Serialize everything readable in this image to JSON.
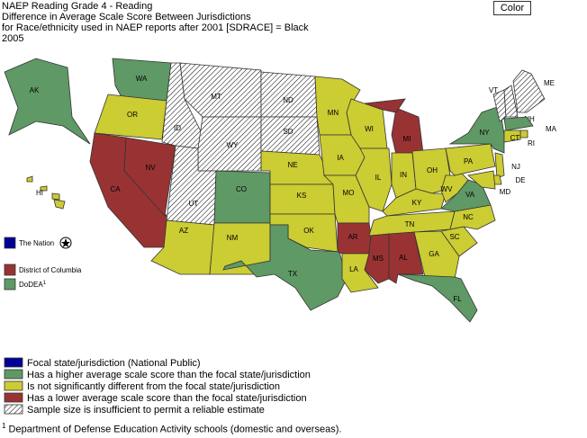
{
  "header": {
    "lines": [
      "NAEP Reading Grade 4 - Reading",
      "Difference in Average Scale Score Between Jurisdictions",
      "for Race/ethnicity used in NAEP reports after 2001 [SDRACE] = Black",
      "2005"
    ]
  },
  "button": "Color",
  "legend": [
    {
      "label": "Focal state/jurisdiction (National Public)",
      "color": "#000099"
    },
    {
      "label": "Has a higher average scale score than the focal state/jurisdiction",
      "color": "#5f9966"
    },
    {
      "label": "Is not significantly different from the focal state/jurisdiction",
      "color": "#cccc33"
    },
    {
      "label": "Has a lower average scale score than the focal state/jurisdiction",
      "color": "#993333"
    },
    {
      "label": "Sample size is insufficient to permit a reliable estimate",
      "color": null,
      "hatched": true
    }
  ],
  "side": [
    {
      "label": "The Nation",
      "status": 0
    },
    {
      "label": "District of Columbia",
      "status": 3
    },
    {
      "label": "DoDEA",
      "note": "1",
      "status": 1
    }
  ],
  "states": [
    {
      "label": "AK",
      "status": 1
    },
    {
      "label": "HI",
      "status": 2
    },
    {
      "label": "WA",
      "status": 1
    },
    {
      "label": "OR",
      "status": 2
    },
    {
      "label": "CA",
      "status": 3
    },
    {
      "label": "NV",
      "status": 3
    },
    {
      "label": "ID",
      "status": 4
    },
    {
      "label": "MT",
      "status": 4
    },
    {
      "label": "WY",
      "status": 4
    },
    {
      "label": "UT",
      "status": 4
    },
    {
      "label": "CO",
      "status": 1
    },
    {
      "label": "AZ",
      "status": 2
    },
    {
      "label": "NM",
      "status": 2
    },
    {
      "label": "ND",
      "status": 4
    },
    {
      "label": "SD",
      "status": 4
    },
    {
      "label": "NE",
      "status": 2
    },
    {
      "label": "KS",
      "status": 2
    },
    {
      "label": "OK",
      "status": 2
    },
    {
      "label": "TX",
      "status": 1
    },
    {
      "label": "MN",
      "status": 2
    },
    {
      "label": "IA",
      "status": 2
    },
    {
      "label": "MO",
      "status": 2
    },
    {
      "label": "AR",
      "status": 3
    },
    {
      "label": "LA",
      "status": 2
    },
    {
      "label": "WI",
      "status": 2
    },
    {
      "label": "IL",
      "status": 2
    },
    {
      "label": "MI",
      "status": 3
    },
    {
      "label": "IN",
      "status": 2
    },
    {
      "label": "OH",
      "status": 2
    },
    {
      "label": "KY",
      "status": 2
    },
    {
      "label": "TN",
      "status": 2
    },
    {
      "label": "MS",
      "status": 3
    },
    {
      "label": "AL",
      "status": 3
    },
    {
      "label": "GA",
      "status": 2
    },
    {
      "label": "FL",
      "status": 1
    },
    {
      "label": "SC",
      "status": 2
    },
    {
      "label": "NC",
      "status": 2
    },
    {
      "label": "VA",
      "status": 1
    },
    {
      "label": "WV",
      "status": 2
    },
    {
      "label": "PA",
      "status": 2
    },
    {
      "label": "NY",
      "status": 1
    },
    {
      "label": "VT",
      "status": 4
    },
    {
      "label": "NH",
      "status": 4
    },
    {
      "label": "ME",
      "status": 4
    },
    {
      "label": "MA",
      "status": 1
    },
    {
      "label": "RI",
      "status": 2
    },
    {
      "label": "CT",
      "status": 2
    },
    {
      "label": "NJ",
      "status": 2
    },
    {
      "label": "DE",
      "status": 2
    },
    {
      "label": "MD",
      "status": 2
    }
  ],
  "footnote": {
    "mark": "1",
    "text": "Department of Defense Education Activity schools (domestic and overseas)."
  }
}
